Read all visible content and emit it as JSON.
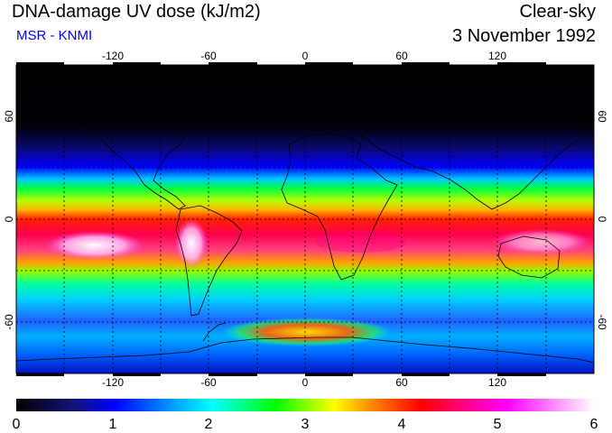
{
  "header": {
    "title": "DNA-damage UV dose (kJ/m2)",
    "subtitle": "MSR - KNMI",
    "condition": "Clear-sky",
    "date": "3 November 1992"
  },
  "map": {
    "projection": "equirectangular",
    "lon_range": [
      -180,
      180
    ],
    "lat_range": [
      -90,
      90
    ],
    "gridlines_lon": [
      -150,
      -120,
      -90,
      -60,
      -30,
      0,
      30,
      60,
      90,
      120,
      150
    ],
    "gridlines_lat": [
      60,
      30,
      0,
      -30,
      -60
    ],
    "lon_tick_labels": [
      "-120",
      "-60",
      "0",
      "60",
      "120"
    ],
    "lat_tick_labels": [
      "60",
      "0",
      "-60"
    ],
    "gridline_style": "dotted"
  },
  "colorbar": {
    "min": 0,
    "max": 6,
    "tick_labels": [
      "0",
      "1",
      "2",
      "3",
      "4",
      "5",
      "6"
    ],
    "colors": [
      "#000000",
      "#1a1a8c",
      "#0000ff",
      "#00aaff",
      "#00ffff",
      "#00ff00",
      "#ffff00",
      "#ff8000",
      "#ff0000",
      "#ff00ff",
      "#ffffff"
    ]
  }
}
